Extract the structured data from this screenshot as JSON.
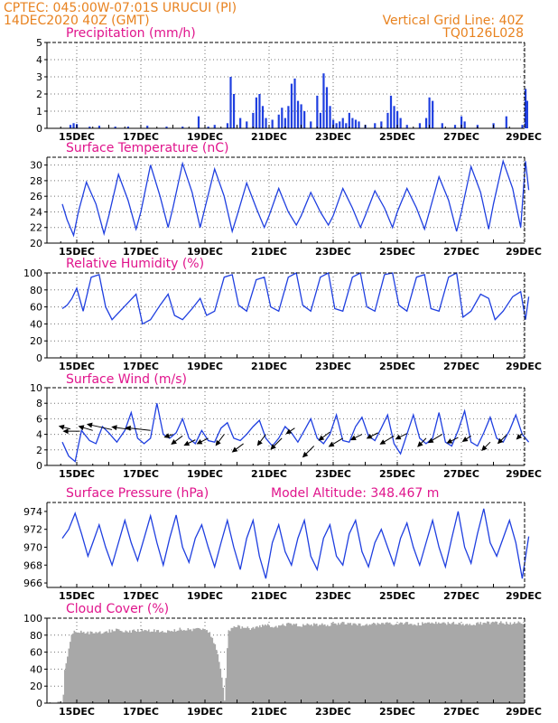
{
  "header": {
    "left_line1": "CPTEC:   045:00W-07:01S   URUCUI (PI)",
    "left_line2": "14DEC2020 40Z (GMT)",
    "right_line1": "Vertical Grid Line: 40Z",
    "right_line2": "TQ0126L028"
  },
  "colors": {
    "header": "#e8821f",
    "panel_title": "#e0148c",
    "series": "#1f3fe0",
    "cloud": "#a8a8a8",
    "grid": "#707070",
    "arrow": "#000000"
  },
  "x_axis": {
    "categories": [
      "15DEC",
      "17DEC",
      "19DEC",
      "21DEC",
      "23DEC",
      "25DEC",
      "27DEC",
      "29DEC"
    ]
  },
  "chart_data": [
    {
      "id": "precipitation",
      "type": "bar",
      "title": "Precipitation (mm/h)",
      "ylim": [
        0,
        5
      ],
      "yticks": [
        0,
        1,
        2,
        3,
        4,
        5
      ],
      "grid": true,
      "x_range_days": [
        14.55,
        29.1
      ],
      "values": [
        [
          14.8,
          0.2
        ],
        [
          14.9,
          0.3
        ],
        [
          15.0,
          0.25
        ],
        [
          15.4,
          0.1
        ],
        [
          15.7,
          0.15
        ],
        [
          16.2,
          0.1
        ],
        [
          16.6,
          0.1
        ],
        [
          17.2,
          0.15
        ],
        [
          17.8,
          0.1
        ],
        [
          18.3,
          0.1
        ],
        [
          18.8,
          0.7
        ],
        [
          19.1,
          0.1
        ],
        [
          19.3,
          0.2
        ],
        [
          19.7,
          0.3
        ],
        [
          19.8,
          3.0
        ],
        [
          19.9,
          2.0
        ],
        [
          20.1,
          0.6
        ],
        [
          20.3,
          0.4
        ],
        [
          20.5,
          0.9
        ],
        [
          20.6,
          1.8
        ],
        [
          20.7,
          2.0
        ],
        [
          20.8,
          1.3
        ],
        [
          20.9,
          0.6
        ],
        [
          21.1,
          0.5
        ],
        [
          21.3,
          0.8
        ],
        [
          21.4,
          1.2
        ],
        [
          21.5,
          0.6
        ],
        [
          21.6,
          1.3
        ],
        [
          21.7,
          2.6
        ],
        [
          21.8,
          2.9
        ],
        [
          21.9,
          1.6
        ],
        [
          22.0,
          1.4
        ],
        [
          22.1,
          1.0
        ],
        [
          22.3,
          0.4
        ],
        [
          22.5,
          1.9
        ],
        [
          22.6,
          0.9
        ],
        [
          22.7,
          3.2
        ],
        [
          22.8,
          2.4
        ],
        [
          22.9,
          1.3
        ],
        [
          23.0,
          0.5
        ],
        [
          23.1,
          0.3
        ],
        [
          23.2,
          0.4
        ],
        [
          23.3,
          0.6
        ],
        [
          23.4,
          0.3
        ],
        [
          23.5,
          0.9
        ],
        [
          23.6,
          0.6
        ],
        [
          23.7,
          0.5
        ],
        [
          23.8,
          0.4
        ],
        [
          24.0,
          0.2
        ],
        [
          24.3,
          0.3
        ],
        [
          24.5,
          0.4
        ],
        [
          24.7,
          0.9
        ],
        [
          24.8,
          1.9
        ],
        [
          24.9,
          1.3
        ],
        [
          25.0,
          1.0
        ],
        [
          25.1,
          0.6
        ],
        [
          25.3,
          0.2
        ],
        [
          25.7,
          0.3
        ],
        [
          25.9,
          0.6
        ],
        [
          26.0,
          1.8
        ],
        [
          26.1,
          1.6
        ],
        [
          26.4,
          0.3
        ],
        [
          26.8,
          0.2
        ],
        [
          27.0,
          0.7
        ],
        [
          27.1,
          0.4
        ],
        [
          27.5,
          0.2
        ],
        [
          28.0,
          0.3
        ],
        [
          28.4,
          0.7
        ],
        [
          28.9,
          0.2
        ],
        [
          29.0,
          2.3
        ],
        [
          29.05,
          1.6
        ]
      ]
    },
    {
      "id": "temperature",
      "type": "line",
      "title": "Surface Temperature (nC)",
      "ylim": [
        20,
        31
      ],
      "yticks": [
        20,
        22,
        24,
        26,
        28,
        30
      ],
      "grid": true,
      "x_range_days": [
        14.55,
        29.1
      ],
      "x": [
        14.55,
        14.7,
        14.9,
        15.05,
        15.3,
        15.6,
        15.85,
        16.0,
        16.3,
        16.6,
        16.85,
        17.0,
        17.3,
        17.6,
        17.85,
        18.0,
        18.3,
        18.6,
        18.85,
        19.0,
        19.3,
        19.6,
        19.85,
        20.0,
        20.3,
        20.6,
        20.85,
        21.0,
        21.3,
        21.6,
        21.85,
        22.0,
        22.3,
        22.6,
        22.85,
        23.0,
        23.3,
        23.6,
        23.85,
        24.0,
        24.3,
        24.6,
        24.85,
        25.0,
        25.3,
        25.6,
        25.85,
        26.0,
        26.3,
        26.6,
        26.85,
        27.0,
        27.3,
        27.6,
        27.85,
        28.0,
        28.3,
        28.6,
        28.85,
        29.0,
        29.1
      ],
      "values": [
        25.0,
        23.0,
        21.0,
        24.0,
        27.8,
        25.0,
        21.2,
        23.5,
        28.8,
        25.5,
        21.8,
        24.0,
        30.0,
        26.0,
        22.0,
        24.5,
        30.2,
        26.5,
        22.0,
        24.5,
        29.5,
        26.0,
        21.5,
        23.5,
        27.7,
        24.5,
        22.0,
        23.5,
        27.0,
        24.0,
        22.3,
        23.5,
        26.5,
        24.0,
        22.3,
        23.5,
        27.0,
        24.5,
        22.0,
        23.5,
        26.7,
        24.5,
        22.0,
        24.0,
        27.0,
        24.5,
        21.8,
        24.0,
        28.5,
        25.5,
        21.5,
        24.0,
        29.8,
        26.5,
        21.8,
        25.0,
        30.5,
        27.0,
        22.0,
        30.5,
        26.8
      ]
    },
    {
      "id": "humidity",
      "type": "line",
      "title": "Relative Humidity (%)",
      "ylim": [
        0,
        100
      ],
      "yticks": [
        0,
        20,
        40,
        60,
        80,
        100
      ],
      "grid": true,
      "x_range_days": [
        14.55,
        29.1
      ],
      "x": [
        14.55,
        14.7,
        14.85,
        15.0,
        15.2,
        15.45,
        15.7,
        15.9,
        16.1,
        16.35,
        16.6,
        16.85,
        17.05,
        17.3,
        17.6,
        17.85,
        18.05,
        18.3,
        18.6,
        18.85,
        19.05,
        19.3,
        19.6,
        19.85,
        20.05,
        20.3,
        20.6,
        20.85,
        21.05,
        21.3,
        21.6,
        21.85,
        22.05,
        22.3,
        22.6,
        22.85,
        23.05,
        23.3,
        23.6,
        23.85,
        24.05,
        24.3,
        24.6,
        24.85,
        25.05,
        25.3,
        25.6,
        25.85,
        26.05,
        26.3,
        26.6,
        26.85,
        27.05,
        27.3,
        27.6,
        27.85,
        28.05,
        28.3,
        28.6,
        28.85,
        29.0,
        29.1
      ],
      "values": [
        58,
        62,
        70,
        82,
        55,
        95,
        98,
        60,
        45,
        55,
        65,
        75,
        40,
        45,
        62,
        75,
        50,
        45,
        58,
        70,
        50,
        55,
        95,
        98,
        62,
        55,
        92,
        95,
        60,
        55,
        95,
        100,
        62,
        55,
        95,
        100,
        58,
        55,
        95,
        100,
        60,
        55,
        98,
        100,
        62,
        55,
        95,
        98,
        58,
        55,
        95,
        100,
        48,
        55,
        75,
        70,
        45,
        55,
        72,
        78,
        45,
        72
      ]
    },
    {
      "id": "wind",
      "type": "line",
      "title": "Surface Wind (m/s)",
      "ylim": [
        0,
        10
      ],
      "yticks": [
        0,
        2,
        4,
        6,
        8,
        10
      ],
      "grid": true,
      "x_range_days": [
        14.55,
        29.1
      ],
      "x": [
        14.55,
        14.75,
        14.95,
        15.15,
        15.4,
        15.6,
        15.8,
        16.0,
        16.25,
        16.5,
        16.7,
        16.9,
        17.1,
        17.3,
        17.5,
        17.7,
        17.9,
        18.1,
        18.3,
        18.5,
        18.7,
        18.9,
        19.1,
        19.3,
        19.5,
        19.7,
        19.9,
        20.1,
        20.3,
        20.5,
        20.7,
        20.9,
        21.1,
        21.3,
        21.5,
        21.7,
        21.9,
        22.1,
        22.3,
        22.5,
        22.7,
        22.9,
        23.1,
        23.3,
        23.5,
        23.7,
        23.9,
        24.1,
        24.3,
        24.5,
        24.7,
        24.9,
        25.1,
        25.3,
        25.5,
        25.7,
        25.9,
        26.1,
        26.3,
        26.5,
        26.7,
        26.9,
        27.1,
        27.3,
        27.5,
        27.7,
        27.9,
        28.1,
        28.3,
        28.5,
        28.7,
        28.9,
        29.1
      ],
      "values": [
        3.0,
        1.2,
        0.5,
        4.5,
        3.2,
        2.8,
        5.0,
        4.2,
        3.0,
        4.5,
        6.8,
        3.5,
        2.8,
        3.5,
        8.0,
        4.0,
        3.5,
        4.2,
        6.0,
        3.5,
        2.8,
        4.5,
        3.2,
        3.0,
        4.8,
        5.5,
        3.5,
        3.2,
        4.0,
        5.0,
        5.8,
        3.5,
        2.5,
        3.5,
        5.0,
        4.2,
        3.0,
        4.5,
        6.0,
        3.5,
        2.8,
        4.0,
        6.5,
        3.2,
        3.0,
        5.0,
        6.2,
        3.8,
        3.2,
        4.8,
        6.5,
        2.8,
        1.5,
        4.0,
        6.5,
        3.5,
        2.8,
        3.5,
        6.8,
        3.0,
        2.5,
        4.5,
        7.0,
        3.0,
        2.5,
        4.2,
        6.2,
        3.5,
        3.0,
        4.5,
        6.5,
        4.0,
        3.0
      ],
      "vectors": [
        [
          14.8,
          4.7,
          -0.4,
          0.1
        ],
        [
          15.1,
          4.4,
          -0.6,
          0.0
        ],
        [
          15.5,
          4.5,
          -0.5,
          0.15
        ],
        [
          16.1,
          4.6,
          -0.9,
          0.2
        ],
        [
          16.7,
          4.6,
          -0.7,
          0.1
        ],
        [
          17.3,
          4.5,
          -0.9,
          0.1
        ],
        [
          18.0,
          4.0,
          -0.3,
          -0.1
        ],
        [
          18.3,
          3.8,
          -0.4,
          -0.3
        ],
        [
          18.7,
          3.3,
          -0.4,
          -0.2
        ],
        [
          19.1,
          3.5,
          -0.4,
          -0.2
        ],
        [
          19.6,
          4.0,
          -0.3,
          -0.4
        ],
        [
          20.2,
          2.8,
          -0.4,
          -0.3
        ],
        [
          20.9,
          4.0,
          -0.3,
          -0.4
        ],
        [
          21.4,
          3.5,
          -0.4,
          -0.4
        ],
        [
          21.8,
          4.8,
          -0.3,
          -0.2
        ],
        [
          22.4,
          2.5,
          -0.4,
          -0.4
        ],
        [
          22.9,
          4.3,
          -0.4,
          -0.3
        ],
        [
          23.3,
          3.5,
          -0.5,
          -0.3
        ],
        [
          23.9,
          4.0,
          -0.4,
          -0.2
        ],
        [
          24.4,
          4.2,
          -0.4,
          -0.2
        ],
        [
          24.9,
          3.8,
          -0.5,
          -0.3
        ],
        [
          25.3,
          4.1,
          -0.4,
          -0.2
        ],
        [
          25.9,
          3.5,
          -0.3,
          -0.3
        ],
        [
          26.4,
          4.0,
          -0.5,
          -0.3
        ],
        [
          26.9,
          3.6,
          -0.4,
          -0.2
        ],
        [
          27.3,
          3.8,
          -0.3,
          -0.2
        ],
        [
          27.9,
          3.0,
          -0.3,
          -0.3
        ],
        [
          28.4,
          3.9,
          -0.3,
          -0.3
        ],
        [
          28.9,
          4.1,
          -0.2,
          -0.2
        ]
      ]
    },
    {
      "id": "pressure",
      "type": "line",
      "title": "Surface Pressure (hPa)",
      "annotation": "Model Altitude: 348.467 m",
      "ylim": [
        965.5,
        975
      ],
      "yticks": [
        966,
        968,
        970,
        972,
        974
      ],
      "grid": false,
      "x_range_days": [
        14.55,
        29.1
      ],
      "x": [
        14.55,
        14.75,
        14.95,
        15.15,
        15.35,
        15.5,
        15.7,
        15.9,
        16.1,
        16.3,
        16.5,
        16.7,
        16.9,
        17.1,
        17.3,
        17.5,
        17.7,
        17.9,
        18.1,
        18.3,
        18.5,
        18.7,
        18.9,
        19.1,
        19.3,
        19.5,
        19.7,
        19.9,
        20.1,
        20.3,
        20.5,
        20.7,
        20.9,
        21.1,
        21.3,
        21.5,
        21.7,
        21.9,
        22.1,
        22.3,
        22.5,
        22.7,
        22.9,
        23.1,
        23.3,
        23.5,
        23.7,
        23.9,
        24.1,
        24.3,
        24.5,
        24.7,
        24.9,
        25.1,
        25.3,
        25.5,
        25.7,
        25.9,
        26.1,
        26.3,
        26.5,
        26.7,
        26.9,
        27.1,
        27.3,
        27.5,
        27.7,
        27.9,
        28.1,
        28.3,
        28.5,
        28.7,
        28.9,
        29.1
      ],
      "values": [
        971.0,
        972.0,
        973.8,
        971.5,
        969.0,
        970.5,
        972.5,
        970.0,
        968.0,
        970.5,
        973.0,
        970.5,
        968.5,
        971.0,
        973.5,
        970.5,
        968.0,
        971.0,
        973.6,
        970.0,
        968.3,
        971.0,
        972.5,
        970.0,
        967.8,
        970.5,
        973.0,
        970.0,
        967.5,
        971.0,
        973.0,
        969.0,
        966.5,
        970.5,
        972.5,
        969.5,
        968.0,
        971.0,
        973.0,
        969.0,
        967.5,
        971.0,
        972.5,
        969.0,
        968.0,
        971.5,
        973.0,
        969.5,
        967.8,
        970.5,
        972.0,
        970.0,
        968.0,
        971.0,
        972.7,
        970.0,
        968.0,
        970.5,
        973.0,
        970.0,
        967.8,
        971.0,
        974.0,
        970.0,
        968.2,
        971.5,
        974.3,
        970.5,
        969.0,
        971.0,
        973.0,
        970.5,
        966.5,
        971.2
      ]
    },
    {
      "id": "cloud",
      "type": "area",
      "title": "Cloud Cover (%)",
      "ylim": [
        0,
        100
      ],
      "yticks": [
        0,
        20,
        40,
        60,
        80,
        100
      ],
      "grid": true,
      "x_range_days": [
        14.55,
        29.1
      ],
      "x": [
        14.55,
        14.6,
        14.7,
        14.8,
        14.9,
        15.0,
        15.2,
        15.5,
        15.8,
        16.2,
        16.6,
        17.0,
        17.4,
        17.8,
        18.2,
        18.6,
        18.9,
        19.1,
        19.3,
        19.4,
        19.5,
        19.6,
        19.7,
        20.0,
        20.4,
        20.8,
        21.2,
        21.6,
        22.0,
        22.4,
        22.8,
        23.2,
        23.6,
        24.0,
        24.4,
        24.8,
        25.2,
        25.6,
        26.0,
        26.4,
        26.8,
        27.2,
        27.6,
        28.0,
        28.4,
        28.8,
        29.1
      ],
      "values": [
        2,
        40,
        60,
        80,
        88,
        85,
        86,
        84,
        86,
        88,
        86,
        88,
        87,
        86,
        89,
        88,
        90,
        86,
        70,
        55,
        35,
        2,
        88,
        92,
        90,
        94,
        92,
        95,
        93,
        95,
        94,
        96,
        95,
        94,
        96,
        95,
        96,
        95,
        96,
        96,
        96,
        95,
        96,
        97,
        96,
        97,
        96
      ]
    }
  ]
}
